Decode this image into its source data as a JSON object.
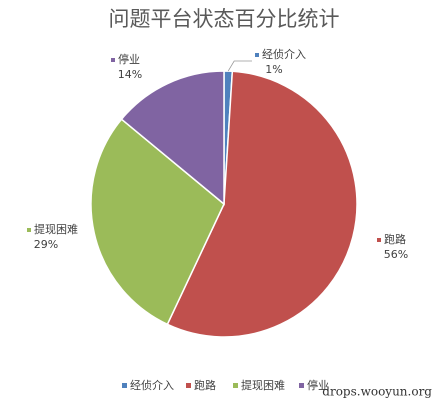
{
  "chart_data": {
    "type": "pie",
    "title": "问题平台状态百分比统计",
    "categories": [
      "经侦介入",
      "跑路",
      "提现困难",
      "停业"
    ],
    "values": [
      1,
      56,
      29,
      14
    ],
    "value_labels": [
      "1%",
      "56%",
      "29%",
      "14%"
    ],
    "colors": [
      "#4f81bd",
      "#c0504d",
      "#9bbb59",
      "#8064a2"
    ],
    "legend": "bottom",
    "watermark": "drops.wooyun.org"
  }
}
